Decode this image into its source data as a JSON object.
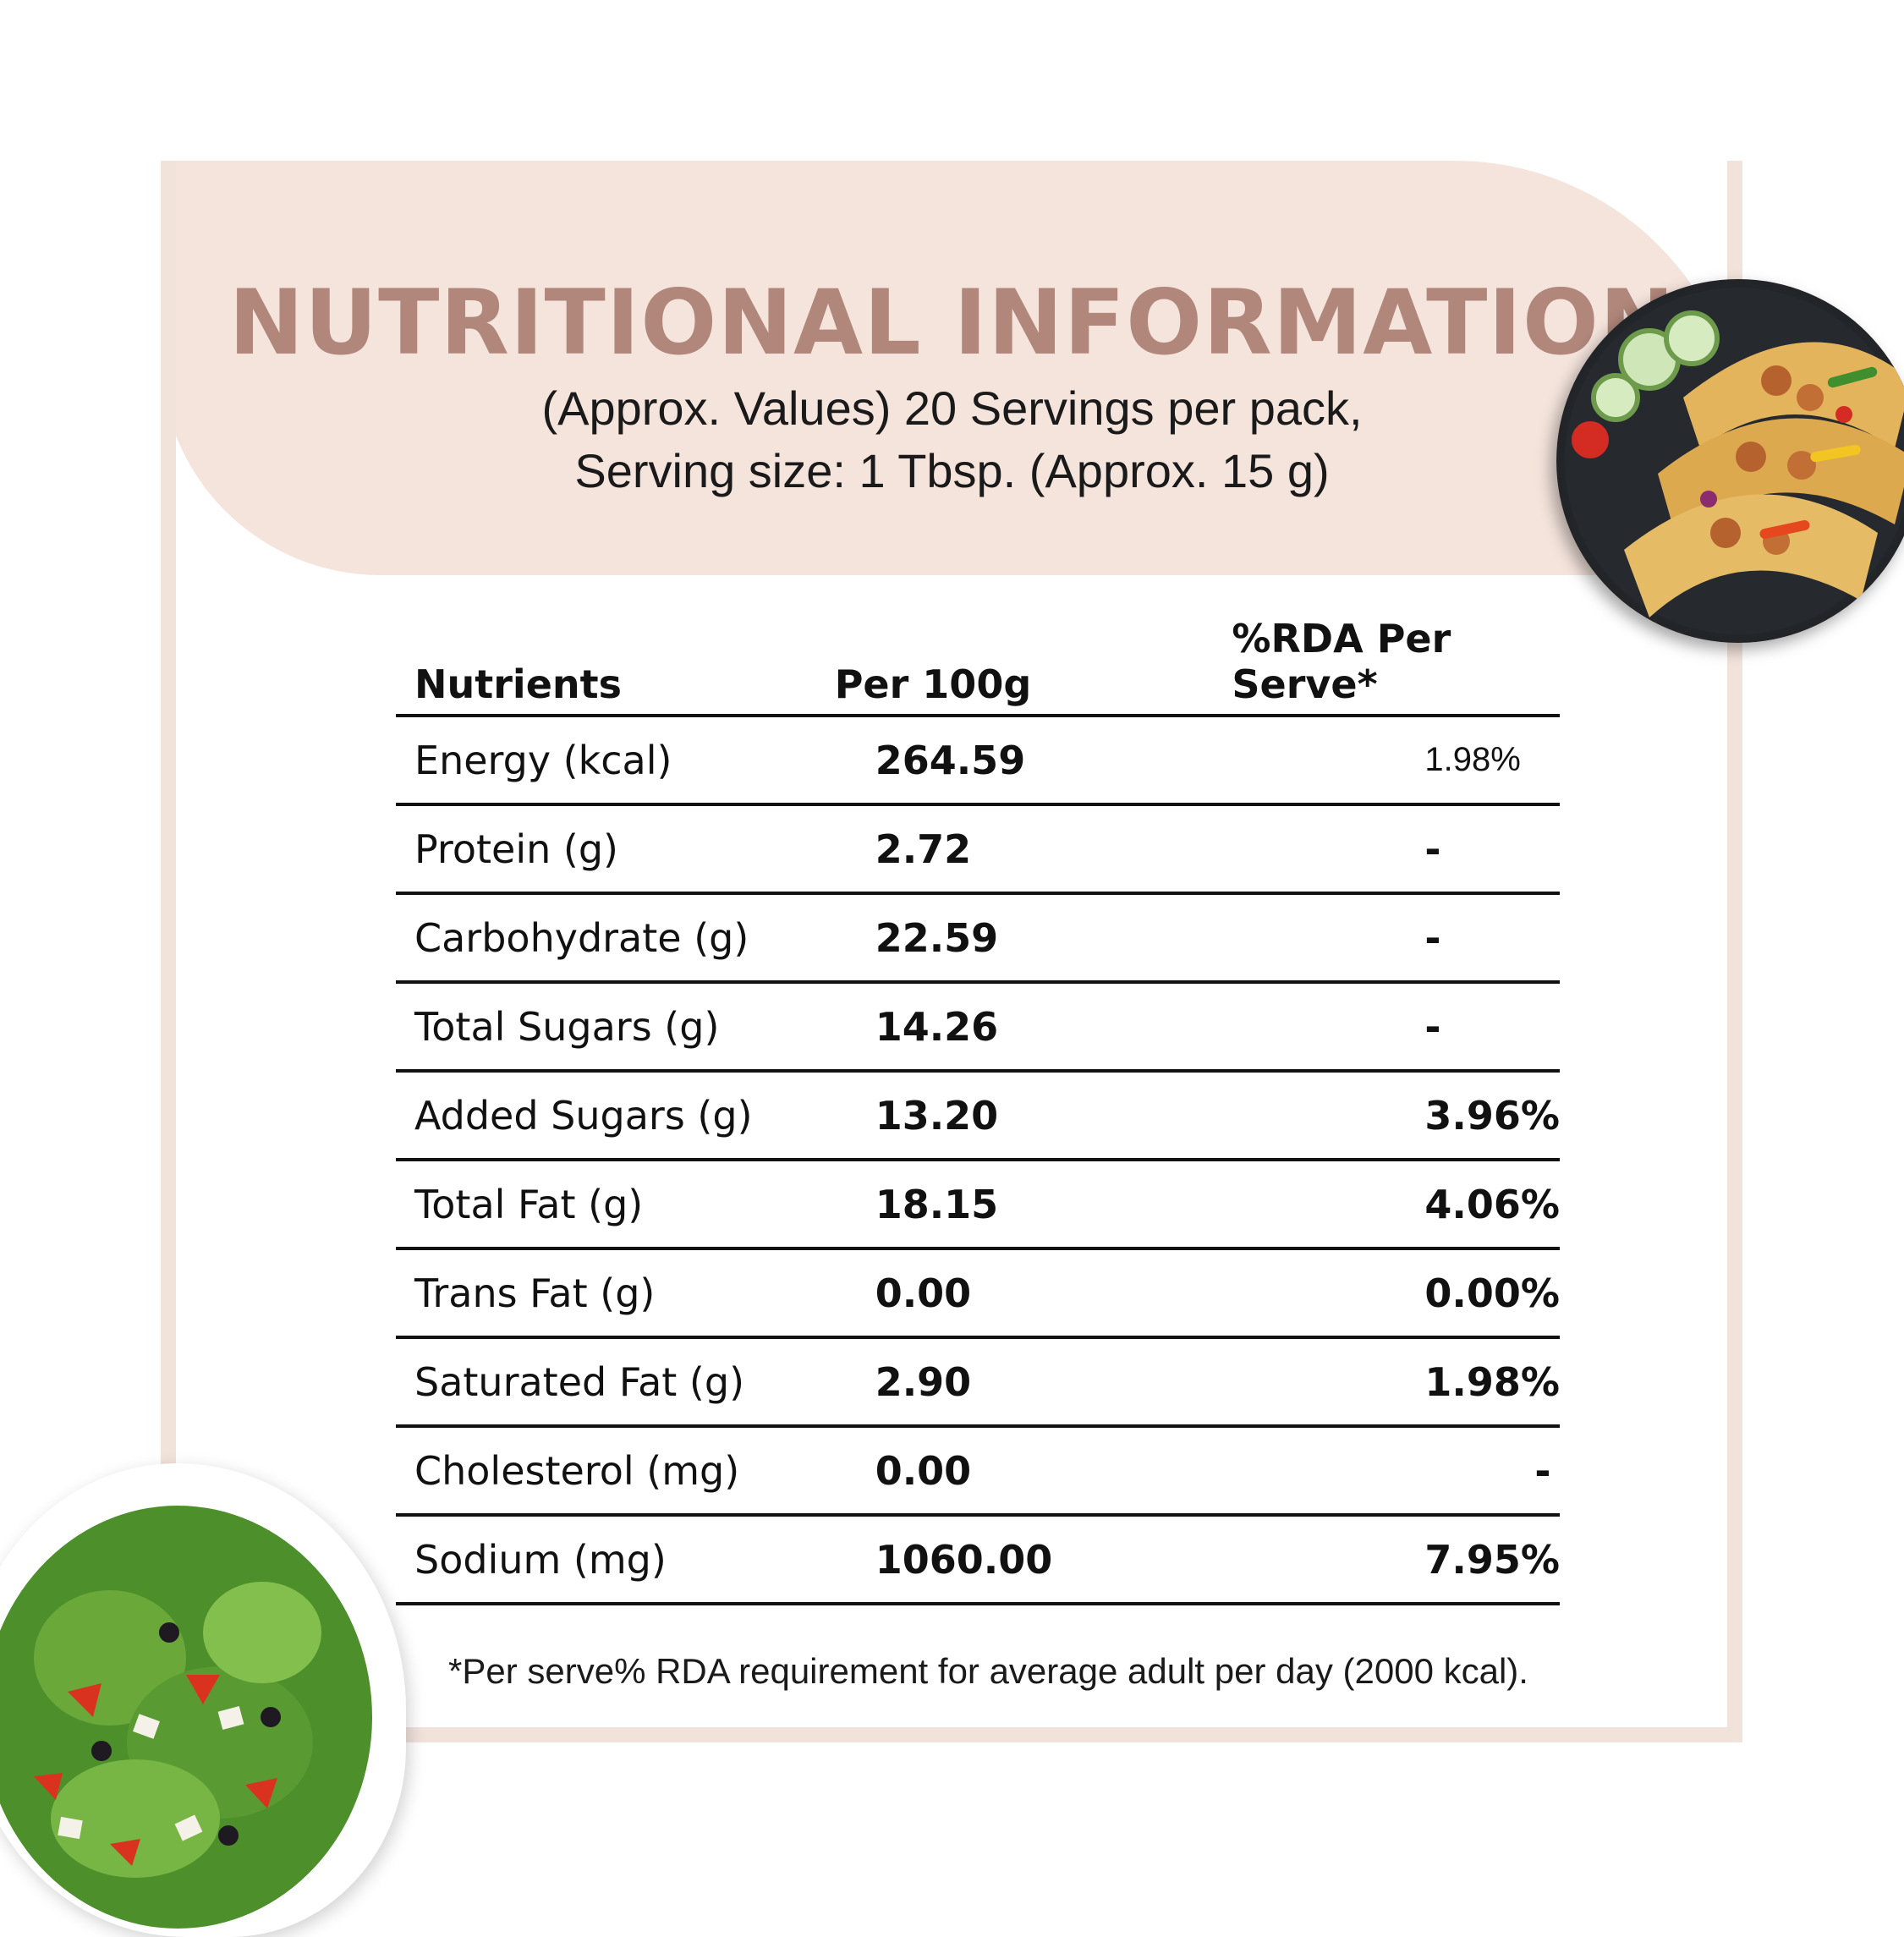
{
  "header": {
    "title": "NUTRITIONAL INFORMATION",
    "subtitle_line1": "(Approx. Values) 20 Servings per pack,",
    "subtitle_line2": "Serving size: 1 Tbsp. (Approx. 15 g)"
  },
  "table": {
    "columns": [
      "Nutrients",
      "Per 100g",
      "%RDA Per Serve*"
    ],
    "rows": [
      {
        "nutrient": "Energy (kcal)",
        "per100g": "264.59",
        "rda": "1.98%"
      },
      {
        "nutrient": "Protein (g)",
        "per100g": "2.72",
        "rda": "-"
      },
      {
        "nutrient": "Carbohydrate (g)",
        "per100g": "22.59",
        "rda": "-"
      },
      {
        "nutrient": "Total Sugars (g)",
        "per100g": "14.26",
        "rda": "-"
      },
      {
        "nutrient": "Added Sugars (g)",
        "per100g": "13.20",
        "rda": "3.96%"
      },
      {
        "nutrient": "Total Fat (g)",
        "per100g": "18.15",
        "rda": "4.06%"
      },
      {
        "nutrient": "Trans Fat (g)",
        "per100g": "0.00",
        "rda": "0.00%"
      },
      {
        "nutrient": "Saturated Fat (g)",
        "per100g": "2.90",
        "rda": "1.98%"
      },
      {
        "nutrient": "Cholesterol (mg)",
        "per100g": "0.00",
        "rda": "-"
      },
      {
        "nutrient": "Sodium (mg)",
        "per100g": "1060.00",
        "rda": "7.95%"
      }
    ]
  },
  "footnote": "*Per serve% RDA requirement for average adult per day (2000 kcal).",
  "colors": {
    "accent_title": "#b0877a",
    "band": "#f4e4dc",
    "frame": "#f1e2da"
  },
  "images": {
    "top_right": "taco-plate-image",
    "bottom_left": "salad-bowl-image"
  }
}
